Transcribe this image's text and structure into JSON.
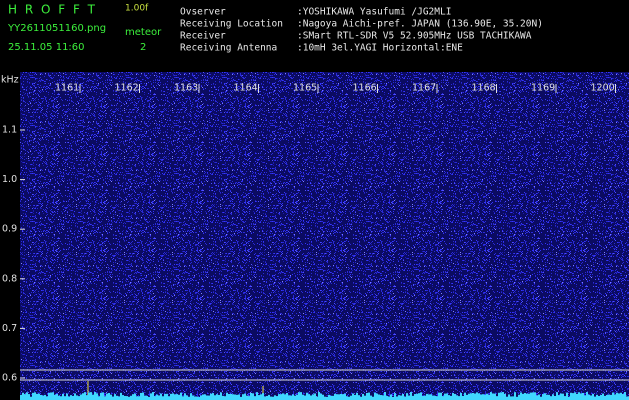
{
  "header": {
    "app_name": "H R O F F T",
    "version": "1.00f",
    "file_name": "YY2611051160.png",
    "mode": "meteor",
    "timestamp": "25.11.05 11:60",
    "count": "2",
    "info": [
      {
        "label": "Ovserver",
        "value": ":YOSHIKAWA Yasufumi /JG2MLI"
      },
      {
        "label": "Receiving Location",
        "value": ":Nagoya Aichi-pref. JAPAN (136.90E, 35.20N)"
      },
      {
        "label": "Receiver",
        "value": ":SMart RTL-SDR V5 52.905MHz USB TACHIKAWA"
      },
      {
        "label": "Receiving Antenna",
        "value": ":10mH 3el.YAGI Horizontal:ENE"
      }
    ]
  },
  "spectrogram": {
    "unit": "kHz",
    "time_labels": [
      "1161",
      "1162",
      "1163",
      "1164",
      "1165",
      "1166",
      "1167",
      "1168",
      "1169",
      "1200"
    ],
    "freq_labels": [
      "1.1",
      "1.0",
      "0.9",
      "0.8",
      "0.7",
      "0.6"
    ]
  }
}
